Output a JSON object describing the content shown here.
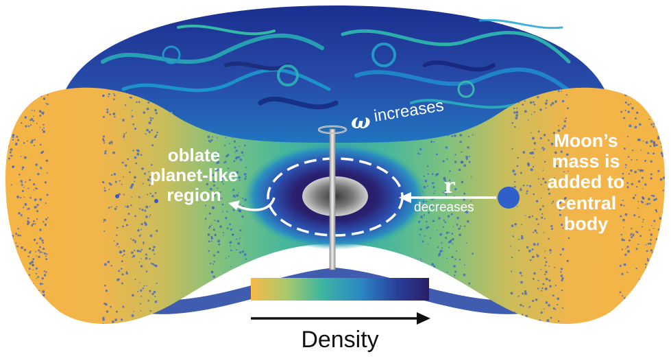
{
  "labels": {
    "oblate_region": "oblate planet-like region",
    "oblate_lines": [
      "oblate",
      "planet-like",
      "region"
    ],
    "moon_lines": [
      "Moon’s",
      "mass is",
      "added to",
      "central",
      "body"
    ],
    "omega_symbol": "ω",
    "omega_change": "increases",
    "r_symbol": "r",
    "r_change": "decreases",
    "colorbar_label": "Density"
  },
  "colorbar": {
    "stops": [
      "#f6b94a",
      "#a9c96a",
      "#3db6a0",
      "#2b86c4",
      "#2a3f9a",
      "#2a1e66"
    ]
  },
  "colors": {
    "disk_low_density": "#f4b447",
    "disk_mid_density": "#7cc086",
    "disk_high_density": "#2a2070",
    "upper_swirl_base": "#233a9a",
    "particle_dots": "#3d63c3",
    "moon_marker": "#2f5fc8",
    "spin_axis": "#c8c8c8"
  },
  "icons": [
    "spin-axis-icon",
    "moon-marker-icon",
    "arrow-right-icon",
    "curved-arrow-icon"
  ]
}
